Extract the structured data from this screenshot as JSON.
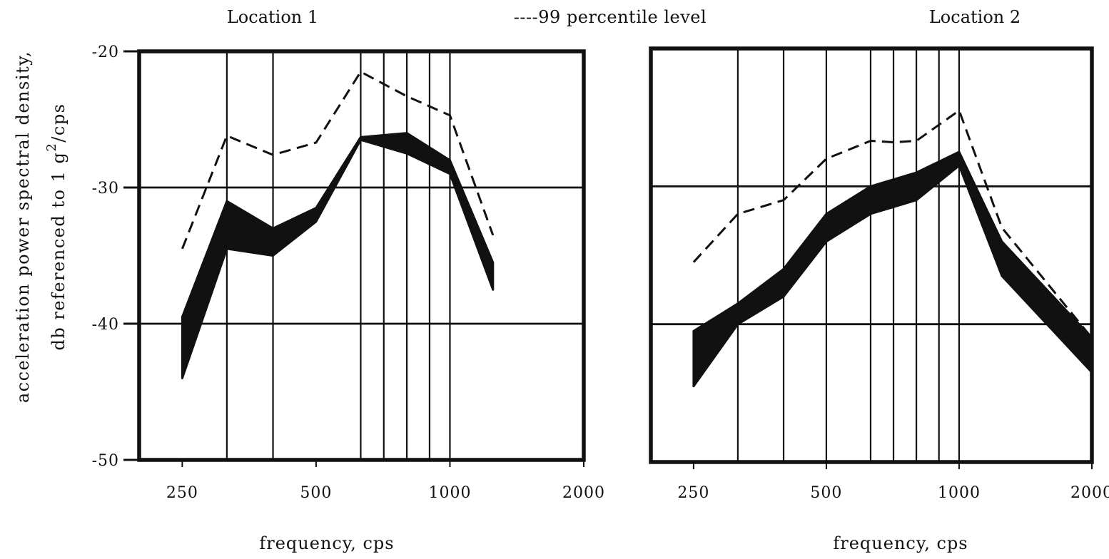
{
  "ylabel_line1": "acceleration power spectral density,",
  "ylabel_line2": "db referenced to 1 g",
  "ylabel_superscript": "2",
  "ylabel_suffix": "/cps",
  "legend_label": "----99 percentile level",
  "chart_data": [
    {
      "type": "area",
      "title": "Location 1",
      "xlabel": "frequency, cps",
      "ylabel": "acceleration power spectral density, db referenced to 1 g2/cps",
      "x_scale": "log",
      "xlim": [
        200,
        2000
      ],
      "ylim": [
        -50,
        -20
      ],
      "x_ticks": [
        250,
        500,
        1000,
        2000
      ],
      "x_tick_labels": [
        "250",
        "500",
        "1000",
        "2000"
      ],
      "y_ticks": [
        -20,
        -30,
        -40,
        -50
      ],
      "y_tick_labels": [
        "-20",
        "-30",
        "-40",
        "-50"
      ],
      "vertical_gridlines": [
        315,
        400,
        630,
        710,
        800,
        900,
        1000
      ],
      "grid": true,
      "band": {
        "x": [
          250,
          315,
          400,
          500,
          630,
          800,
          1000,
          1250
        ],
        "lower": [
          -44,
          -34.5,
          -35,
          -32.5,
          -26.5,
          -27.5,
          -29,
          -37.5
        ],
        "upper": [
          -39.5,
          -31,
          -33,
          -31.5,
          -26.3,
          -26,
          -28,
          -35.5
        ]
      },
      "series": [
        {
          "name": "99 percentile level",
          "style": "dashed",
          "x": [
            250,
            315,
            400,
            500,
            630,
            800,
            1000,
            1250
          ],
          "values": [
            -34.5,
            -26.2,
            -27.6,
            -26.7,
            -21.5,
            -23.3,
            -24.7,
            -33.5
          ]
        }
      ]
    },
    {
      "type": "area",
      "title": "Location 2",
      "xlabel": "frequency, cps",
      "ylabel": "acceleration power spectral density, db referenced to 1 g2/cps",
      "x_scale": "log",
      "xlim": [
        200,
        2000
      ],
      "ylim": [
        -50,
        -20
      ],
      "x_ticks": [
        250,
        500,
        1000,
        2000
      ],
      "x_tick_labels": [
        "250",
        "500",
        "1000",
        "2000"
      ],
      "y_ticks": [
        -30,
        -40
      ],
      "y_tick_labels": [],
      "vertical_gridlines": [
        315,
        400,
        500,
        630,
        710,
        800,
        900,
        1000
      ],
      "grid": true,
      "band": {
        "x": [
          250,
          315,
          400,
          500,
          630,
          800,
          1000,
          1250,
          2000
        ],
        "lower": [
          -44.5,
          -40,
          -38,
          -34,
          -32,
          -31,
          -28.5,
          -36.5,
          -43.5
        ],
        "upper": [
          -40.5,
          -38.5,
          -36,
          -32,
          -30,
          -29,
          -27.5,
          -34,
          -41
        ]
      },
      "series": [
        {
          "name": "99 percentile level",
          "style": "dashed",
          "x": [
            250,
            315,
            400,
            500,
            630,
            710,
            800,
            1000,
            1250,
            2000
          ],
          "values": [
            -35.5,
            -32,
            -31,
            -28,
            -26.7,
            -26.8,
            -26.7,
            -24.5,
            -33,
            -41
          ]
        }
      ]
    }
  ]
}
